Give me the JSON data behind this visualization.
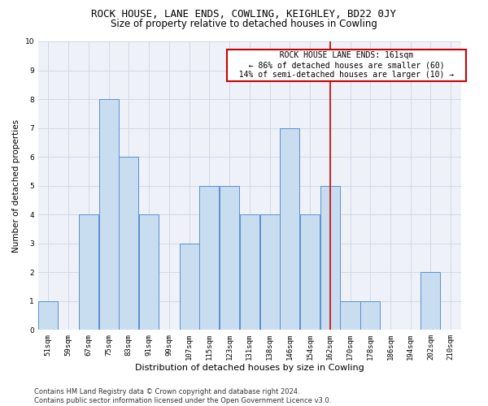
{
  "title": "ROCK HOUSE, LANE ENDS, COWLING, KEIGHLEY, BD22 0JY",
  "subtitle": "Size of property relative to detached houses in Cowling",
  "xlabel": "Distribution of detached houses by size in Cowling",
  "ylabel": "Number of detached properties",
  "categories": [
    "51sqm",
    "59sqm",
    "67sqm",
    "75sqm",
    "83sqm",
    "91sqm",
    "99sqm",
    "107sqm",
    "115sqm",
    "123sqm",
    "131sqm",
    "138sqm",
    "146sqm",
    "154sqm",
    "162sqm",
    "170sqm",
    "178sqm",
    "186sqm",
    "194sqm",
    "202sqm",
    "210sqm"
  ],
  "values": [
    1,
    0,
    4,
    8,
    6,
    4,
    0,
    3,
    5,
    5,
    4,
    4,
    7,
    4,
    5,
    1,
    1,
    0,
    0,
    2,
    0
  ],
  "bar_color": "#c9ddf0",
  "bar_edge_color": "#5b8fcf",
  "vline_x_index": 14,
  "vline_color": "#cc0000",
  "annotation_text": "  ROCK HOUSE LANE ENDS: 161sqm  \n  ← 86% of detached houses are smaller (60)  \n  14% of semi-detached houses are larger (10) →  ",
  "annotation_box_color": "#ffffff",
  "annotation_box_edge_color": "#cc0000",
  "ylim": [
    0,
    10
  ],
  "yticks": [
    0,
    1,
    2,
    3,
    4,
    5,
    6,
    7,
    8,
    9,
    10
  ],
  "grid_color": "#d0d8e8",
  "background_color": "#eef2f8",
  "footer_text": "Contains HM Land Registry data © Crown copyright and database right 2024.\nContains public sector information licensed under the Open Government Licence v3.0.",
  "title_fontsize": 9,
  "subtitle_fontsize": 8.5,
  "xlabel_fontsize": 8,
  "ylabel_fontsize": 7.5,
  "tick_fontsize": 6.5,
  "annotation_fontsize": 7,
  "footer_fontsize": 6
}
